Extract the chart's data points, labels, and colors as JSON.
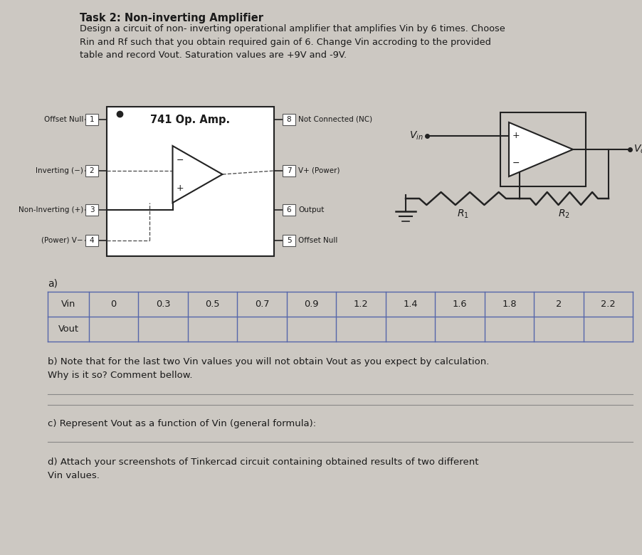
{
  "bg_color": "#ccc8c2",
  "title": "Task 2: Non-inverting Amplifier",
  "intro_text": "Design a circuit of non- inverting operational amplifier that amplifies Vin by 6 times. Choose\nRin and Rf such that you obtain required gain of 6. Change Vin accroding to the provided\ntable and record Vout. Saturation values are +9V and -9V.",
  "vin_values": [
    "Vin",
    "0",
    "0.3",
    "0.5",
    "0.7",
    "0.9",
    "1.2",
    "1.4",
    "1.6",
    "1.8",
    "2",
    "2.2"
  ],
  "vout_label": "Vout",
  "section_b": "b) Note that for the last two Vin values you will not obtain Vout as you expect by calculation.\nWhy is it so? Comment bellow.",
  "section_c": "c) Represent Vout as a function of Vin (general formula):",
  "section_d": "d) Attach your screenshots of Tinkercad circuit containing obtained results of two different\nVin values.",
  "text_color": "#1a1a1a",
  "dark_color": "#222222",
  "table_line_color": "#5566aa"
}
